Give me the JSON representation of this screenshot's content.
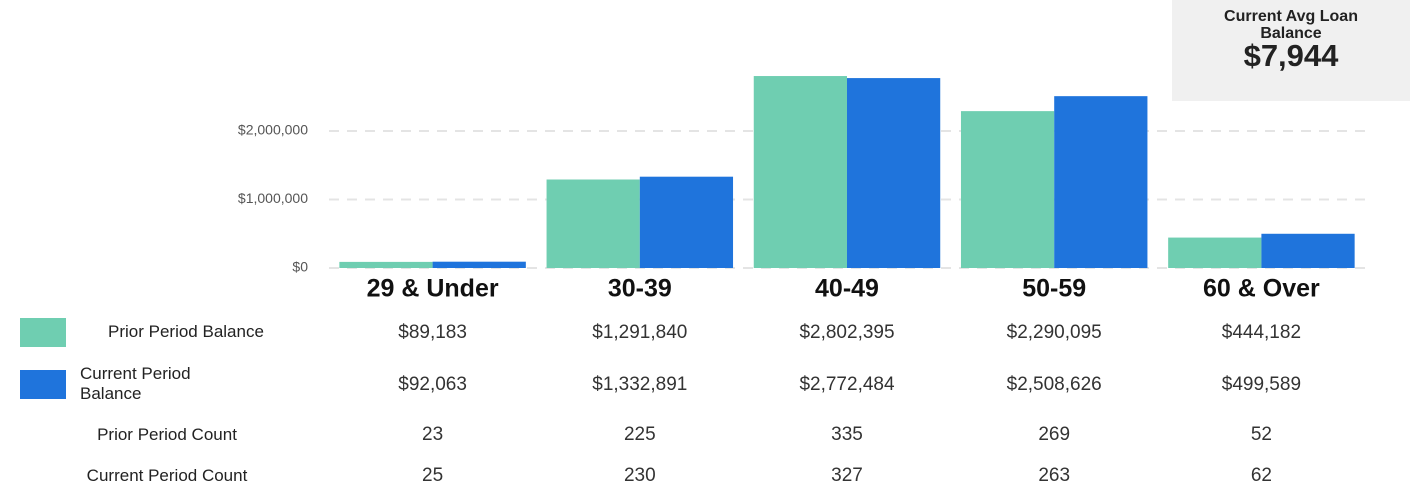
{
  "chart_data": {
    "type": "bar",
    "categories": [
      "29 & Under",
      "30-39",
      "40-49",
      "50-59",
      "60 & Over"
    ],
    "ylim": [
      0,
      3000000
    ],
    "yticks": [
      {
        "value": 0,
        "label": "$0"
      },
      {
        "value": 1000000,
        "label": "$1,000,000"
      },
      {
        "value": 2000000,
        "label": "$2,000,000"
      }
    ],
    "grid": true,
    "series": [
      {
        "name": "Prior Period Balance",
        "color": "#6fceb1",
        "values": [
          89183,
          1291840,
          2802395,
          2290095,
          444182
        ],
        "value_labels": [
          "$89,183",
          "$1,291,840",
          "$2,802,395",
          "$2,290,095",
          "$444,182"
        ]
      },
      {
        "name": "Current Period Balance",
        "color": "#1f74dc",
        "values": [
          92063,
          1332891,
          2772484,
          2508626,
          499589
        ],
        "value_labels": [
          "$92,063",
          "$1,332,891",
          "$2,772,484",
          "$2,508,626",
          "$499,589"
        ]
      }
    ]
  },
  "table": {
    "rows": [
      {
        "label": "Prior Period Count",
        "values": [
          23,
          225,
          335,
          269,
          52
        ]
      },
      {
        "label": "Current Period Count",
        "values": [
          25,
          230,
          327,
          263,
          62
        ]
      }
    ]
  },
  "kpi": {
    "title": "Current Avg Loan Balance",
    "value": "$7,944"
  }
}
